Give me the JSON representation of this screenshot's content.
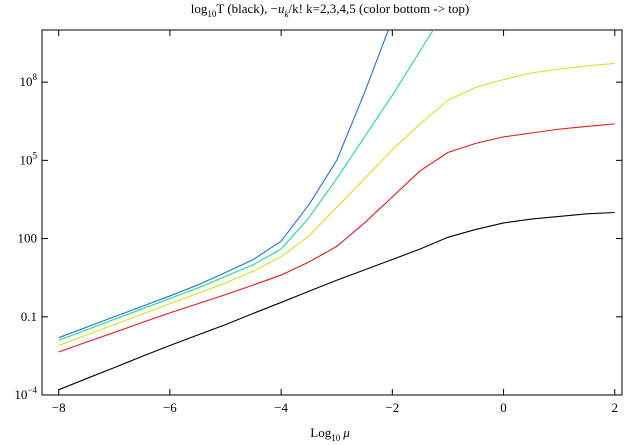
{
  "chart_data": {
    "type": "line",
    "title": [
      "log",
      "10",
      "T (black),   −",
      "u",
      "k",
      "/k!   k=2,3,4,5 (color bottom -> top)"
    ],
    "x_label": [
      "Log",
      "10",
      "μ"
    ],
    "x": [
      -8,
      -7.5,
      -7,
      -6.5,
      -6,
      -5.5,
      -5,
      -4.5,
      -4,
      -3.5,
      -3,
      -2.5,
      -2,
      -1.5,
      -1,
      -0.5,
      0,
      0.5,
      1,
      1.5,
      2
    ],
    "xlim": [
      -8.3,
      2.13
    ],
    "xticks": [
      {
        "value": -8,
        "label": "−8"
      },
      {
        "value": -6,
        "label": "−6"
      },
      {
        "value": -4,
        "label": "−4"
      },
      {
        "value": -2,
        "label": "−2"
      },
      0,
      2
    ],
    "ylim": [
      0.0001,
      10000000000.0
    ],
    "log_y": true,
    "yticks": [
      {
        "value": 0.0001,
        "label": "10",
        "exponent": "−4"
      },
      0.1,
      100,
      {
        "value": 100000,
        "label": "10",
        "exponent": "5"
      },
      {
        "value": 100000000,
        "label": "10",
        "exponent": "8"
      }
    ],
    "series": [
      {
        "color": "#000000",
        "values": [
          0.000158,
          0.000427,
          0.00112,
          0.00302,
          0.00794,
          0.02,
          0.0501,
          0.135,
          0.355,
          0.955,
          2.51,
          6.31,
          15.8,
          39.8,
          112,
          224,
          398,
          562,
          708,
          891,
          1000
        ]
      },
      {
        "color": "#e41a1c",
        "values": [
          0.00447,
          0.0107,
          0.0251,
          0.0603,
          0.141,
          0.316,
          0.708,
          1.66,
          3.98,
          12.6,
          50.1,
          398,
          3980,
          39800,
          200000,
          447000,
          794000,
          1120000,
          1580000,
          2000000,
          2510000
        ]
      },
      {
        "color": "#d4e21c",
        "values": [
          0.00794,
          0.02,
          0.0501,
          0.126,
          0.316,
          0.794,
          2.0,
          5.62,
          20.0,
          126,
          1580,
          20000,
          251000,
          2510000,
          20000000,
          63100000,
          126000000,
          224000000,
          316000000,
          417000000,
          525000000
        ]
      },
      {
        "color": "#1edc8c",
        "values": [
          0.0126,
          0.0316,
          0.0794,
          0.2,
          0.501,
          1.26,
          3.55,
          10,
          39.8,
          631,
          20000,
          794000,
          31600000,
          1580000000,
          79400000000,
          null,
          null,
          null,
          null,
          null,
          null
        ]
      },
      {
        "color": "#1f6fe0",
        "values": [
          0.0158,
          0.0398,
          0.1,
          0.251,
          0.631,
          1.66,
          5.01,
          15.8,
          79.4,
          2000,
          100000,
          39800000,
          25100000000,
          null,
          null,
          null,
          null,
          null,
          null,
          null,
          null
        ]
      }
    ]
  }
}
